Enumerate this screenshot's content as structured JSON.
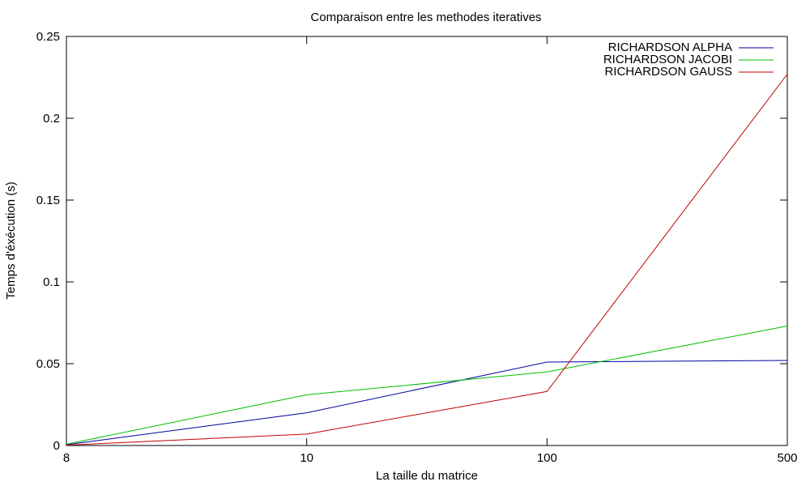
{
  "chart_data": {
    "type": "line",
    "title": "Comparaison entre les methodes iteratives",
    "xlabel": "La taille du matrice",
    "ylabel": "Temps d'éxécution (s)",
    "categories": [
      "8",
      "10",
      "100",
      "500"
    ],
    "ylim": [
      0,
      0.25
    ],
    "yticks": [
      "0",
      "0.05",
      "0.1",
      "0.15",
      "0.2",
      "0.25"
    ],
    "grid": false,
    "legend_position": "top-right",
    "series": [
      {
        "name": "RICHARDSON ALPHA",
        "color": "#0000a0",
        "values": [
          0.0005,
          0.02,
          0.051,
          0.052
        ]
      },
      {
        "name": "RICHARDSON JACOBI",
        "color": "#00c000",
        "values": [
          0.0008,
          0.031,
          0.045,
          0.073
        ]
      },
      {
        "name": "RICHARDSON GAUSS",
        "color": "#c00000",
        "values": [
          0.0002,
          0.007,
          0.033,
          0.227
        ]
      }
    ]
  }
}
